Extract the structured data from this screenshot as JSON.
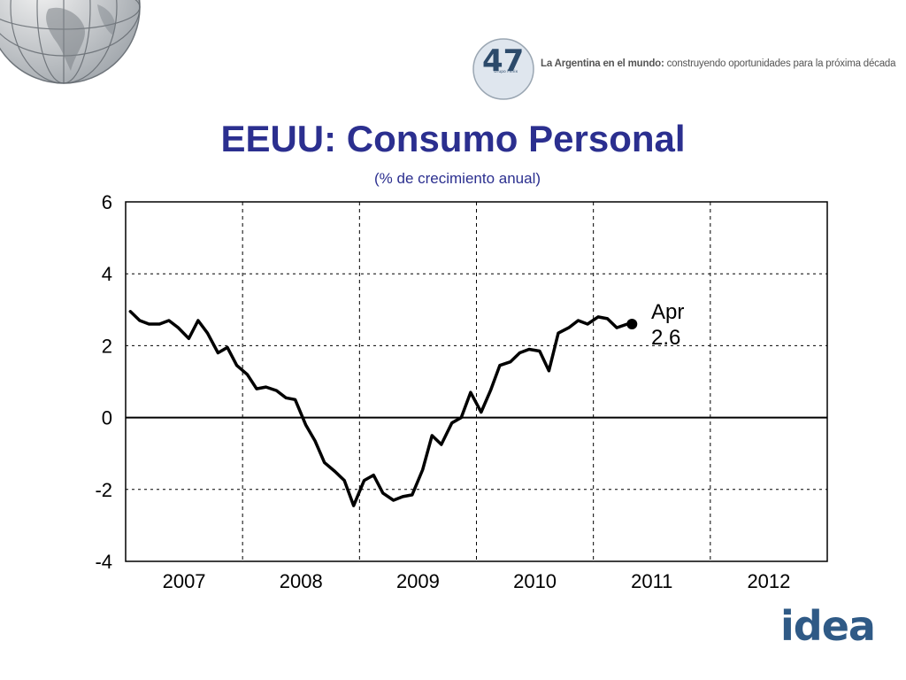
{
  "header": {
    "logo_number": "47",
    "logo_caption": "Grupo Fénix",
    "tagline_bold": "La Argentina en el mundo:",
    "tagline_rest": " construyendo oportunidades para la próxima década"
  },
  "footer": {
    "brand": "idea"
  },
  "colors": {
    "title": "#2b2f8f",
    "line": "#000000",
    "grid": "#000000",
    "brand": "#2f5a86"
  },
  "chart_data": {
    "type": "line",
    "title": "EEUU: Consumo Personal",
    "subtitle": "(% de crecimiento anual)",
    "xlabel": "",
    "ylabel": "",
    "x_categories": [
      "2007",
      "2008",
      "2009",
      "2010",
      "2011",
      "2012"
    ],
    "xlim": [
      2006.92,
      2012.92
    ],
    "ylim": [
      -4,
      6
    ],
    "y_ticks": [
      "6",
      "4",
      "2",
      "0",
      "-2",
      "-4"
    ],
    "y_tick_values": [
      6,
      4,
      2,
      0,
      -2,
      -4
    ],
    "grid": "dashed",
    "zero_line": true,
    "annotation": {
      "label_1": "Apr",
      "label_2": "2.6",
      "x": 2011.25,
      "y": 2.6
    },
    "series": [
      {
        "x": [
          2006.96,
          2007.04,
          2007.12,
          2007.21,
          2007.29,
          2007.37,
          2007.46,
          2007.54,
          2007.62,
          2007.71,
          2007.79,
          2007.87,
          2007.96,
          2008.04,
          2008.12,
          2008.21,
          2008.29,
          2008.37,
          2008.46,
          2008.54,
          2008.62,
          2008.71,
          2008.79,
          2008.87,
          2008.96,
          2009.04,
          2009.12,
          2009.21,
          2009.29,
          2009.37,
          2009.46,
          2009.54,
          2009.62,
          2009.71,
          2009.79,
          2009.87,
          2009.96,
          2010.04,
          2010.12,
          2010.21,
          2010.29,
          2010.37,
          2010.46,
          2010.54,
          2010.62,
          2010.71,
          2010.79,
          2010.87,
          2010.96,
          2011.04,
          2011.12,
          2011.21,
          2011.25
        ],
        "y": [
          2.95,
          2.7,
          2.6,
          2.6,
          2.7,
          2.5,
          2.2,
          2.7,
          2.35,
          1.8,
          1.95,
          1.45,
          1.2,
          0.8,
          0.85,
          0.75,
          0.55,
          0.5,
          -0.2,
          -0.65,
          -1.25,
          -1.5,
          -1.75,
          -2.45,
          -1.75,
          -1.6,
          -2.1,
          -2.3,
          -2.2,
          -2.15,
          -1.45,
          -0.5,
          -0.75,
          -0.15,
          0.0,
          0.7,
          0.15,
          0.75,
          1.45,
          1.55,
          1.8,
          1.9,
          1.85,
          1.3,
          2.35,
          2.5,
          2.7,
          2.6,
          2.8,
          2.75,
          2.5,
          2.6,
          2.6
        ]
      }
    ]
  }
}
